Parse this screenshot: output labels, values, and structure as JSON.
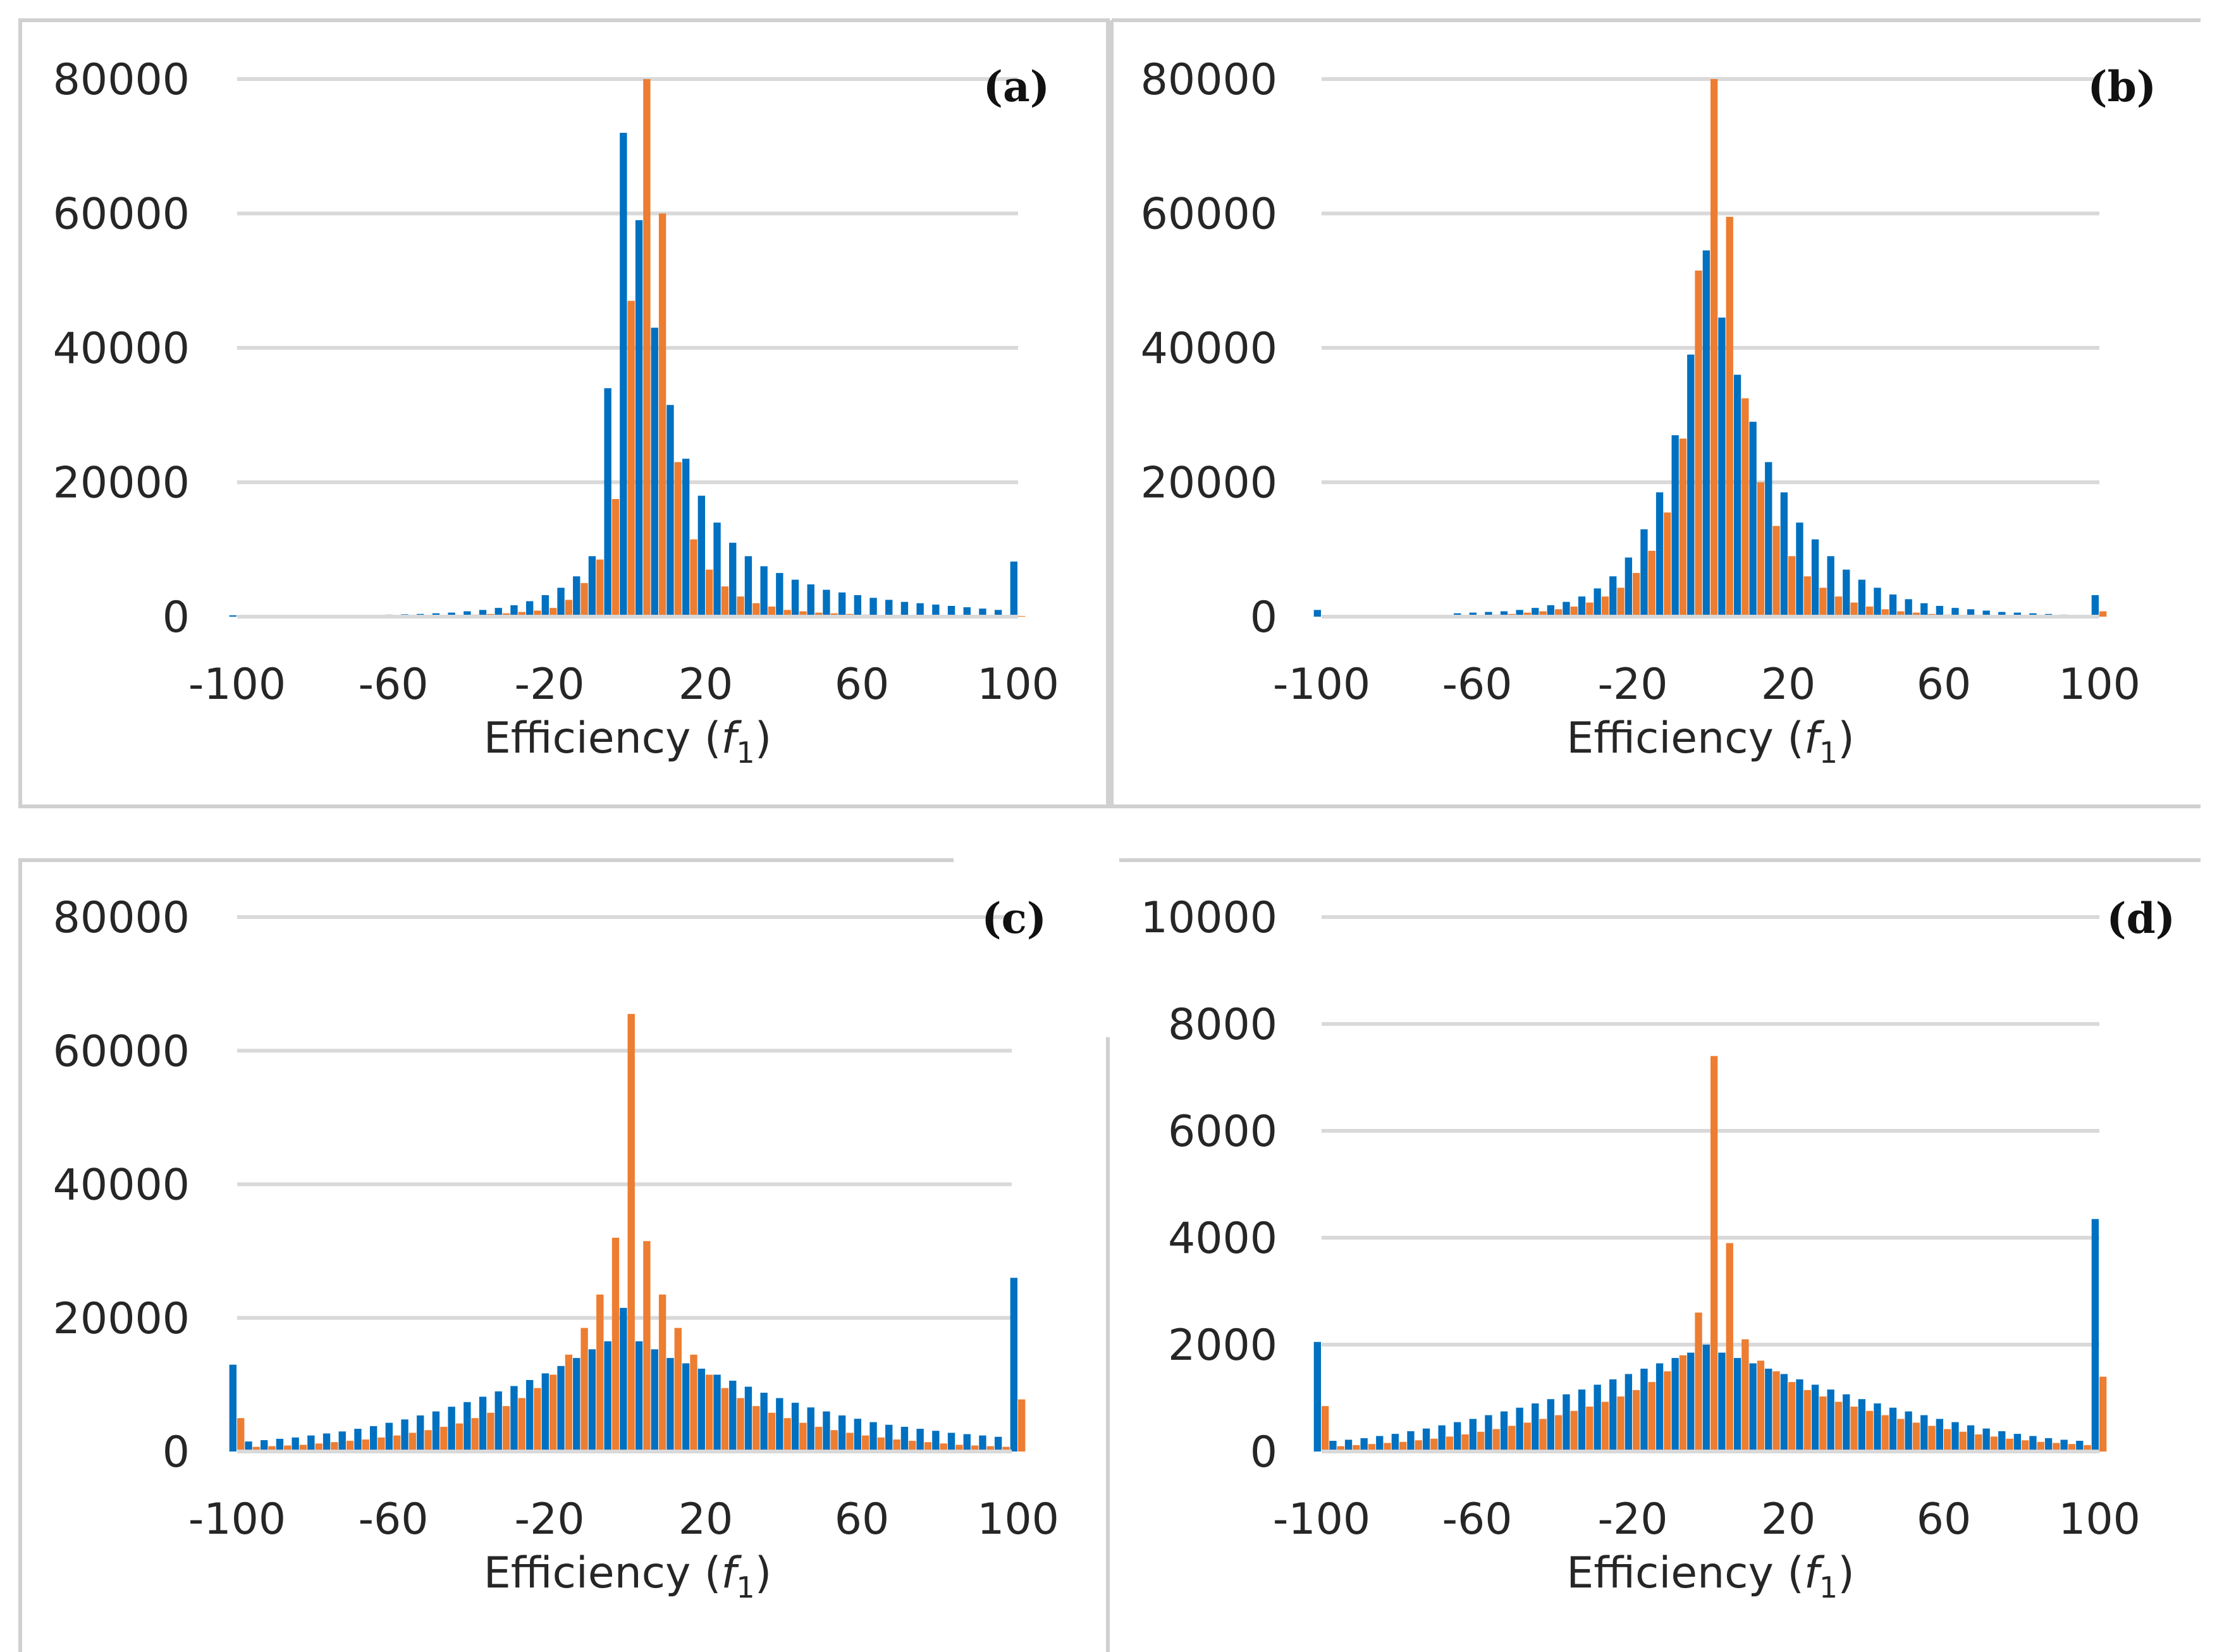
{
  "colors": {
    "series_blue": "#0070c0",
    "series_orange": "#ed7d31"
  },
  "chart_data": [
    {
      "type": "bar",
      "panel_label": "(a)",
      "title": "",
      "xlabel": "Efficiency (f1)",
      "xlabel_parts": [
        "Efficiency (",
        "f",
        "1",
        ")"
      ],
      "ylabel": "",
      "x_tick_labels": [
        "-100",
        "-60",
        "-20",
        "20",
        "60",
        "100"
      ],
      "y_tick_labels": [
        "0",
        "20000",
        "40000",
        "60000",
        "80000"
      ],
      "ylim": [
        0,
        80000
      ],
      "xlim": [
        -100,
        100
      ],
      "grid": true,
      "legend": "none",
      "x": [
        -100,
        -96,
        -92,
        -88,
        -84,
        -80,
        -76,
        -72,
        -68,
        -64,
        -60,
        -56,
        -52,
        -48,
        -44,
        -40,
        -36,
        -32,
        -28,
        -24,
        -20,
        -16,
        -12,
        -8,
        -4,
        0,
        4,
        8,
        12,
        16,
        20,
        24,
        28,
        32,
        36,
        40,
        44,
        48,
        52,
        56,
        60,
        64,
        68,
        72,
        76,
        80,
        84,
        88,
        92,
        96,
        100
      ],
      "series": [
        {
          "name": "blue",
          "color": "#0070c0",
          "values": [
            200,
            200,
            200,
            200,
            200,
            200,
            200,
            200,
            200,
            250,
            300,
            350,
            400,
            500,
            600,
            800,
            1000,
            1300,
            1700,
            2300,
            3200,
            4300,
            6000,
            9000,
            34000,
            72000,
            59000,
            43000,
            31500,
            23500,
            18000,
            14000,
            11000,
            9000,
            7500,
            6500,
            5500,
            4800,
            4000,
            3600,
            3200,
            2800,
            2500,
            2200,
            2000,
            1800,
            1600,
            1400,
            1200,
            1000,
            8200
          ]
        },
        {
          "name": "orange",
          "color": "#ed7d31",
          "values": [
            100,
            100,
            100,
            100,
            100,
            100,
            100,
            100,
            100,
            100,
            100,
            100,
            150,
            200,
            250,
            300,
            400,
            500,
            700,
            900,
            1300,
            2500,
            5000,
            8500,
            17500,
            47000,
            80000,
            60000,
            23000,
            11500,
            7000,
            4500,
            3000,
            2000,
            1500,
            1000,
            800,
            600,
            500,
            400,
            300,
            250,
            200,
            150,
            150,
            100,
            100,
            100,
            100,
            100,
            100
          ]
        }
      ]
    },
    {
      "type": "bar",
      "panel_label": "(b)",
      "title": "",
      "xlabel": "Efficiency (f1)",
      "xlabel_parts": [
        "Efficiency (",
        "f",
        "1",
        ")"
      ],
      "ylabel": "",
      "x_tick_labels": [
        "-100",
        "-60",
        "-20",
        "20",
        "60",
        "100"
      ],
      "y_tick_labels": [
        "0",
        "20000",
        "40000",
        "60000",
        "80000"
      ],
      "ylim": [
        0,
        80000
      ],
      "xlim": [
        -100,
        100
      ],
      "grid": true,
      "legend": "none",
      "x": [
        -100,
        -96,
        -92,
        -88,
        -84,
        -80,
        -76,
        -72,
        -68,
        -64,
        -60,
        -56,
        -52,
        -48,
        -44,
        -40,
        -36,
        -32,
        -28,
        -24,
        -20,
        -16,
        -12,
        -8,
        -4,
        0,
        4,
        8,
        12,
        16,
        20,
        24,
        28,
        32,
        36,
        40,
        44,
        48,
        52,
        56,
        60,
        64,
        68,
        72,
        76,
        80,
        84,
        88,
        92,
        96,
        100
      ],
      "series": [
        {
          "name": "blue",
          "color": "#0070c0",
          "values": [
            1000,
            0,
            0,
            0,
            0,
            0,
            0,
            0,
            0,
            500,
            600,
            700,
            800,
            1000,
            1300,
            1700,
            2200,
            3000,
            4200,
            6000,
            8800,
            13000,
            18500,
            27000,
            39000,
            54500,
            44500,
            36000,
            29000,
            23000,
            18500,
            14000,
            11500,
            9000,
            7000,
            5500,
            4300,
            3300,
            2600,
            2000,
            1600,
            1300,
            1100,
            900,
            700,
            600,
            500,
            400,
            300,
            200,
            3200
          ]
        },
        {
          "name": "orange",
          "color": "#ed7d31",
          "values": [
            0,
            0,
            0,
            0,
            0,
            0,
            0,
            0,
            0,
            0,
            200,
            300,
            400,
            600,
            800,
            1100,
            1500,
            2100,
            3000,
            4300,
            6500,
            9800,
            15500,
            26500,
            51500,
            80000,
            59500,
            32500,
            20000,
            13500,
            9000,
            6000,
            4300,
            3000,
            2100,
            1500,
            1100,
            800,
            600,
            400,
            300,
            200,
            150,
            100,
            100,
            100,
            100,
            100,
            100,
            100,
            800
          ]
        }
      ]
    },
    {
      "type": "bar",
      "panel_label": "(c)",
      "title": "",
      "xlabel": "Efficiency (f1)",
      "xlabel_parts": [
        "Efficiency (",
        "f",
        "1",
        ")"
      ],
      "ylabel": "",
      "x_tick_labels": [
        "-100",
        "-60",
        "-20",
        "20",
        "60",
        "100"
      ],
      "y_tick_labels": [
        "0",
        "20000",
        "40000",
        "60000",
        "80000"
      ],
      "ylim": [
        0,
        80000
      ],
      "xlim": [
        -100,
        100
      ],
      "grid": true,
      "legend": "none",
      "x": [
        -100,
        -96,
        -92,
        -88,
        -84,
        -80,
        -76,
        -72,
        -68,
        -64,
        -60,
        -56,
        -52,
        -48,
        -44,
        -40,
        -36,
        -32,
        -28,
        -24,
        -20,
        -16,
        -12,
        -8,
        -4,
        0,
        4,
        8,
        12,
        16,
        20,
        24,
        28,
        32,
        36,
        40,
        44,
        48,
        52,
        56,
        60,
        64,
        68,
        72,
        76,
        80,
        84,
        88,
        92,
        96,
        100
      ],
      "series": [
        {
          "name": "blue",
          "color": "#0070c0",
          "values": [
            13000,
            1500,
            1700,
            1900,
            2100,
            2400,
            2700,
            3000,
            3400,
            3800,
            4300,
            4800,
            5400,
            6000,
            6700,
            7400,
            8200,
            9000,
            9800,
            10700,
            11700,
            12800,
            14000,
            15300,
            16500,
            21500,
            16500,
            15300,
            14000,
            13200,
            12400,
            11500,
            10600,
            9700,
            8800,
            8000,
            7300,
            6600,
            6000,
            5400,
            4900,
            4400,
            4000,
            3700,
            3400,
            3100,
            2800,
            2600,
            2400,
            2200,
            26000
          ]
        },
        {
          "name": "orange",
          "color": "#ed7d31",
          "values": [
            5000,
            700,
            800,
            900,
            1000,
            1200,
            1400,
            1600,
            1800,
            2100,
            2400,
            2800,
            3200,
            3700,
            4200,
            5000,
            5800,
            6800,
            8000,
            9500,
            11500,
            14500,
            18500,
            23500,
            32000,
            65500,
            31500,
            23500,
            18500,
            14500,
            11500,
            9500,
            8000,
            6800,
            5800,
            5000,
            4300,
            3700,
            3200,
            2800,
            2400,
            2100,
            1800,
            1600,
            1400,
            1200,
            1000,
            900,
            800,
            700,
            7800
          ]
        }
      ]
    },
    {
      "type": "bar",
      "panel_label": "(d)",
      "title": "",
      "xlabel": "Efficiency (f1)",
      "xlabel_parts": [
        "Efficiency (",
        "f",
        "1",
        ")"
      ],
      "ylabel": "",
      "x_tick_labels": [
        "-100",
        "-60",
        "-20",
        "20",
        "60",
        "100"
      ],
      "y_tick_labels": [
        "0",
        "2000",
        "4000",
        "6000",
        "8000",
        "10000"
      ],
      "ylim": [
        0,
        10000
      ],
      "xlim": [
        -100,
        100
      ],
      "grid": true,
      "legend": "none",
      "x": [
        -100,
        -96,
        -92,
        -88,
        -84,
        -80,
        -76,
        -72,
        -68,
        -64,
        -60,
        -56,
        -52,
        -48,
        -44,
        -40,
        -36,
        -32,
        -28,
        -24,
        -20,
        -16,
        -12,
        -8,
        -4,
        0,
        4,
        8,
        12,
        16,
        20,
        24,
        28,
        32,
        36,
        40,
        44,
        48,
        52,
        56,
        60,
        64,
        68,
        72,
        76,
        80,
        84,
        88,
        92,
        96,
        100
      ],
      "series": [
        {
          "name": "blue",
          "color": "#0070c0",
          "values": [
            2050,
            200,
            220,
            250,
            290,
            330,
            380,
            430,
            490,
            550,
            610,
            680,
            750,
            820,
            900,
            980,
            1070,
            1160,
            1250,
            1350,
            1450,
            1550,
            1650,
            1750,
            1850,
            2000,
            1850,
            1750,
            1650,
            1550,
            1450,
            1350,
            1250,
            1160,
            1070,
            980,
            900,
            820,
            750,
            680,
            610,
            550,
            490,
            430,
            380,
            330,
            290,
            250,
            220,
            200,
            4350
          ]
        },
        {
          "name": "orange",
          "color": "#ed7d31",
          "values": [
            850,
            100,
            120,
            140,
            160,
            180,
            210,
            240,
            280,
            320,
            370,
            420,
            480,
            540,
            610,
            680,
            760,
            840,
            930,
            1030,
            1150,
            1300,
            1500,
            1800,
            2600,
            7400,
            3900,
            2100,
            1700,
            1500,
            1300,
            1150,
            1030,
            930,
            840,
            760,
            680,
            610,
            540,
            480,
            420,
            370,
            320,
            280,
            240,
            210,
            180,
            160,
            140,
            120,
            1400
          ]
        }
      ]
    }
  ]
}
